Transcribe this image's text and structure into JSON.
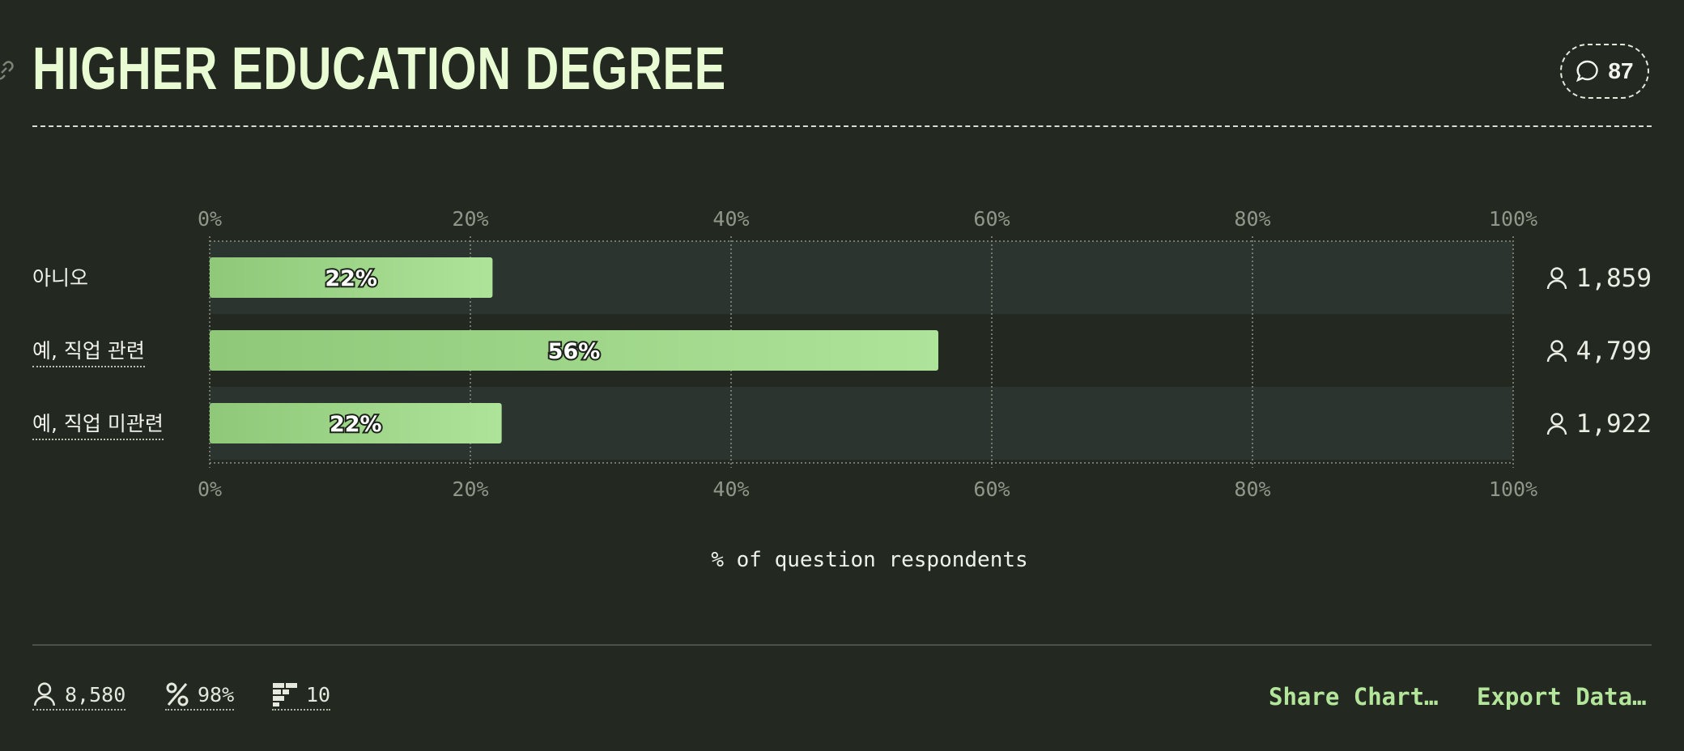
{
  "title": "HIGHER EDUCATION DEGREE",
  "comments_count": "87",
  "icons": {
    "link": "link-icon",
    "comment": "comment-bubble-icon",
    "person": "person-icon",
    "percent": "percent-icon",
    "questions": "question-list-icon"
  },
  "colors": {
    "background": "#232920",
    "bar_gradient_start": "#8ec878",
    "bar_gradient_end": "#aee39a",
    "title": "#e8fbd3",
    "action": "#b3e59b"
  },
  "chart_data": {
    "type": "bar",
    "orientation": "horizontal",
    "categories": [
      "아니오",
      "예, 직업 관련",
      "예, 직업 미관련"
    ],
    "values": [
      21.7,
      55.9,
      22.4
    ],
    "value_labels": [
      "22%",
      "56%",
      "22%"
    ],
    "counts": [
      "1,859",
      "4,799",
      "1,922"
    ],
    "xlabel": "% of question respondents",
    "xlim": [
      0,
      100
    ],
    "ticks": [
      "0%",
      "20%",
      "40%",
      "60%",
      "80%",
      "100%"
    ],
    "grid": true
  },
  "footer": {
    "respondents": "8,580",
    "percent_answered": "98%",
    "questions": "10",
    "share_label": "Share Chart…",
    "export_label": "Export Data…"
  }
}
